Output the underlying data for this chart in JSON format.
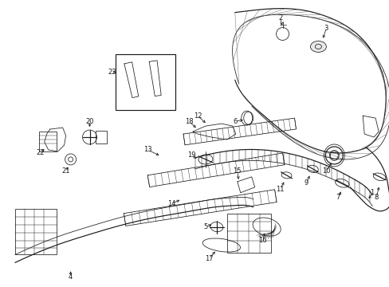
{
  "background_color": "#ffffff",
  "line_color": "#1a1a1a",
  "figsize": [
    4.89,
    3.6
  ],
  "dpi": 100,
  "label_fs": 6.0,
  "lw_thin": 0.55,
  "lw_med": 0.85,
  "lw_thick": 1.2
}
